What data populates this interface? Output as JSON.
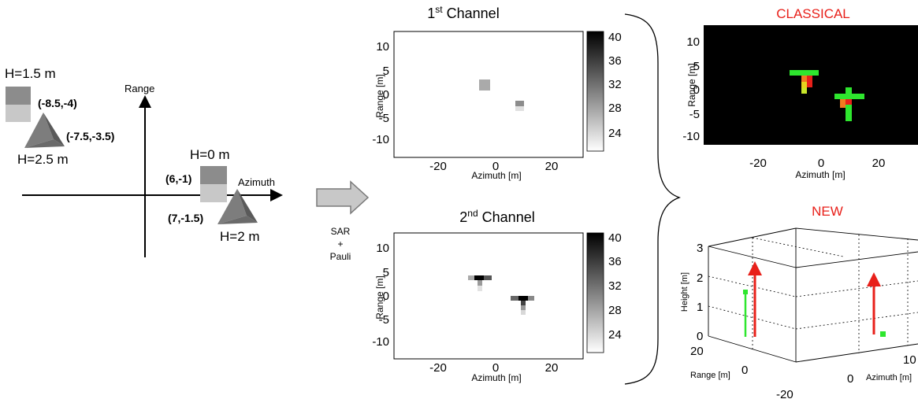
{
  "scene": {
    "range_label": "Range",
    "azimuth_label": "Azimuth",
    "targets": [
      {
        "height_label": "H=1.5 m",
        "coord_label": "(-8.5,-4)"
      },
      {
        "height_label": "H=2.5 m",
        "coord_label": "(-7.5,-3.5)"
      },
      {
        "height_label": "H=0 m",
        "coord_label": "(6,-1)"
      },
      {
        "height_label": "H=2 m",
        "coord_label": "(7,-1.5)"
      }
    ]
  },
  "process": {
    "line1": "SAR",
    "line2": "+",
    "line3": "Pauli"
  },
  "channel1": {
    "title_base": "1",
    "title_sup": "st",
    "title_rest": " Channel",
    "xlabel": "Azimuth [m]",
    "ylabel": "Range [m]",
    "xticks": [
      "-20",
      "0",
      "20"
    ],
    "yticks": [
      "10",
      "5",
      "0",
      "-5",
      "-10"
    ],
    "colorbar_ticks": [
      "40",
      "36",
      "32",
      "28",
      "24"
    ]
  },
  "channel2": {
    "title_base": "2",
    "title_sup": "nd",
    "title_rest": " Channel",
    "xlabel": "Azimuth [m]",
    "ylabel": "Range [m]",
    "xticks": [
      "-20",
      "0",
      "20"
    ],
    "yticks": [
      "10",
      "5",
      "0",
      "-5",
      "-10"
    ],
    "colorbar_ticks": [
      "40",
      "36",
      "32",
      "28",
      "24"
    ]
  },
  "classical": {
    "title": "CLASSICAL",
    "xlabel": "Azimuth [m]",
    "ylabel": "Range [m]",
    "xticks": [
      "-20",
      "0",
      "20"
    ],
    "yticks": [
      "10",
      "5",
      "0",
      "-5",
      "-10"
    ]
  },
  "new_panel": {
    "title": "NEW",
    "zlabel": "Height [m]",
    "range_label": "Range [m]",
    "azimuth_label": "Azimuth [m]",
    "zticks": [
      "3",
      "2",
      "1",
      "0"
    ],
    "range_ticks": [
      "20",
      "0",
      "-20"
    ],
    "azimuth_ticks": [
      "0",
      "10"
    ]
  },
  "colors": {
    "title_red": "#e8201a",
    "green": "#2ee62e",
    "red": "#e8201a",
    "orange": "#f07a20"
  }
}
